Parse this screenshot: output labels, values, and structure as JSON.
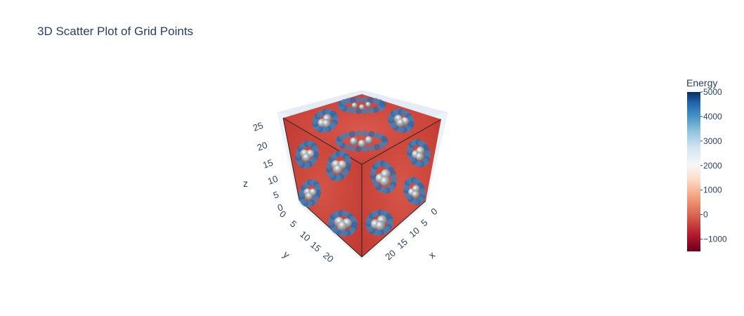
{
  "chart_data": {
    "type": "scatter3d",
    "title": "3D Scatter Plot of Grid Points",
    "axes": {
      "x": {
        "label": "x",
        "ticks": [
          "0",
          "5",
          "10",
          "15",
          "20"
        ],
        "range": [
          0,
          25
        ]
      },
      "y": {
        "label": "y",
        "ticks": [
          "0",
          "5",
          "10",
          "15",
          "20"
        ],
        "range": [
          0,
          25
        ]
      },
      "z": {
        "label": "z",
        "ticks": [
          "0",
          "5",
          "10",
          "15",
          "20",
          "25"
        ],
        "range": [
          0,
          27
        ]
      }
    },
    "colorbar": {
      "title": "Energy",
      "colorscale": "RdBu",
      "range": [
        -1500,
        5000
      ],
      "ticks": [
        "5000",
        "4000",
        "3000",
        "2000",
        "1000",
        "0",
        "−1000"
      ],
      "tick_values": [
        5000,
        4000,
        3000,
        2000,
        1000,
        0,
        -1000
      ]
    },
    "colors": {
      "low": "#67001f",
      "mid": "#f7f7f7",
      "high": "#053061",
      "background_energy": "#cc4a3f",
      "axis_grid": "#dfe6f2",
      "text": "#2a3f5f"
    }
  }
}
